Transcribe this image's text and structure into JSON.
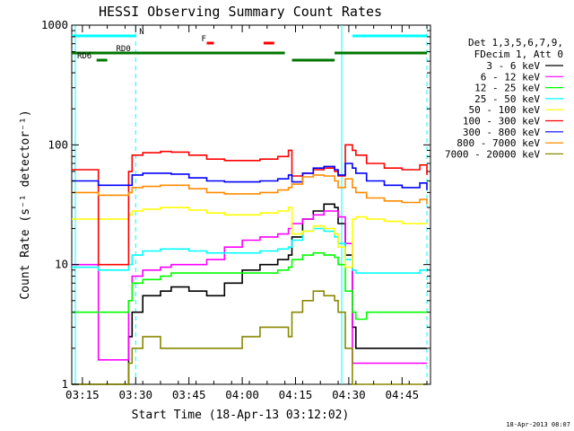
{
  "chart_data": {
    "type": "line",
    "title": "HESSI Observing Summary Count Rates",
    "xlabel": "Start Time (18-Apr-13 03:12:02)",
    "ylabel": "Count Rate (s⁻¹ detector⁻¹)",
    "x_tick_labels": [
      "03:15",
      "03:30",
      "03:45",
      "04:00",
      "04:15",
      "04:30",
      "04:45"
    ],
    "x_ticks_min": [
      0,
      15,
      30,
      45,
      60,
      75,
      90
    ],
    "xlim_min": [
      -3,
      98
    ],
    "y_tick_labels": [
      "1",
      "10",
      "100",
      "1000"
    ],
    "ylim": [
      1,
      1000
    ],
    "yscale": "log",
    "timestamp": "18-Apr-2013 08:07",
    "legend": {
      "position": "right",
      "header": [
        "Det 1,3,5,6,7,9,",
        "FDecim 1, Att 0"
      ],
      "entries": [
        {
          "label": "3 - 6 keV",
          "color": "#000000"
        },
        {
          "label": "6 - 12 keV",
          "color": "#ff00ff"
        },
        {
          "label": "12 - 25 keV",
          "color": "#00ff00"
        },
        {
          "label": "25 - 50 keV",
          "color": "#00ffff"
        },
        {
          "label": "50 - 100 keV",
          "color": "#ffff00"
        },
        {
          "label": "100 - 300 keV",
          "color": "#ff0000"
        },
        {
          "label": "300 - 800 keV",
          "color": "#0000ff"
        },
        {
          "label": "800 - 7000 keV",
          "color": "#ff8c00"
        },
        {
          "label": "7000 - 20000 keV",
          "color": "#888800"
        }
      ]
    },
    "flags": [
      {
        "label": "N",
        "color": "#00ffff",
        "segments": [
          [
            -3,
            15
          ],
          [
            76,
            97
          ]
        ]
      },
      {
        "label": "F",
        "color": "#ff0000",
        "segments": [
          [
            35,
            37
          ],
          [
            51,
            54
          ]
        ]
      },
      {
        "label": "RD0",
        "color": "#007700",
        "segments": [
          [
            -3,
            57
          ],
          [
            71,
            97
          ]
        ]
      },
      {
        "label": "RD6",
        "color": "#007700",
        "segments": [
          [
            4,
            7
          ],
          [
            59,
            71
          ]
        ]
      }
    ],
    "vlines": [
      {
        "x": -2,
        "color": "#00ffff",
        "style": "solid"
      },
      {
        "x": 15,
        "color": "#00ffff",
        "style": "dashed"
      },
      {
        "x": 73,
        "color": "#00ffff",
        "style": "solid"
      },
      {
        "x": 97,
        "color": "#00ffff",
        "style": "dashed"
      }
    ],
    "series": [
      {
        "name": "3 - 6 keV",
        "color": "#000000",
        "x": [
          -3,
          4,
          4.5,
          10,
          13,
          14,
          17,
          22,
          25,
          30,
          35,
          40,
          45,
          50,
          55,
          58,
          59,
          62,
          65,
          68,
          71,
          72,
          74,
          76,
          77,
          80,
          85,
          90,
          95,
          97
        ],
        "y": [
          1,
          1,
          1,
          1,
          2.5,
          4,
          5.5,
          6,
          6.5,
          6,
          5.5,
          7,
          9,
          10,
          11,
          12,
          17,
          24,
          28,
          32,
          30,
          22,
          12,
          3,
          2,
          2,
          2,
          2,
          2,
          2
        ]
      },
      {
        "name": "6 - 12 keV",
        "color": "#ff00ff",
        "x": [
          -3,
          4,
          4.5,
          10,
          13,
          14,
          17,
          22,
          25,
          30,
          35,
          40,
          45,
          50,
          55,
          58,
          59,
          62,
          65,
          68,
          71,
          72,
          74,
          76,
          77,
          80,
          85,
          90,
          95,
          97
        ],
        "y": [
          10,
          10,
          1.6,
          1.6,
          5,
          8,
          9,
          9.5,
          10,
          10,
          11,
          14,
          16,
          17,
          18,
          20,
          22,
          24,
          26,
          28,
          28,
          25,
          15,
          1.5,
          1.5,
          1.5,
          1.5,
          1.5,
          1.5,
          1.5
        ]
      },
      {
        "name": "12 - 25 keV",
        "color": "#00ff00",
        "x": [
          -3,
          4,
          4.5,
          10,
          13,
          14,
          17,
          22,
          25,
          30,
          35,
          40,
          45,
          50,
          55,
          58,
          59,
          62,
          65,
          68,
          71,
          72,
          74,
          76,
          77,
          80,
          85,
          90,
          95,
          97
        ],
        "y": [
          4,
          4,
          4,
          4,
          5,
          7,
          7.5,
          8,
          8.5,
          8.5,
          8.5,
          8.5,
          8.5,
          8.5,
          9,
          9.5,
          11,
          12,
          12.5,
          12,
          11.5,
          10,
          6,
          4,
          3.5,
          4,
          4,
          4,
          4,
          4
        ]
      },
      {
        "name": "25 - 50 keV",
        "color": "#00ffff",
        "x": [
          -3,
          4,
          4.5,
          10,
          13,
          14,
          17,
          22,
          25,
          30,
          35,
          40,
          45,
          50,
          55,
          58,
          59,
          62,
          65,
          68,
          71,
          72,
          74,
          76,
          77,
          80,
          85,
          90,
          95,
          97
        ],
        "y": [
          9.5,
          9.5,
          9,
          9,
          10,
          12,
          13,
          13.5,
          13.5,
          13,
          12.5,
          12.5,
          12.5,
          13,
          13.5,
          14,
          16,
          19,
          20,
          19,
          17,
          15,
          11,
          9,
          8.5,
          8.5,
          8.5,
          8.5,
          9,
          9
        ]
      },
      {
        "name": "50 - 100 keV",
        "color": "#ffff00",
        "x": [
          -3,
          4,
          4.5,
          10,
          13,
          14,
          17,
          22,
          25,
          30,
          35,
          40,
          45,
          50,
          55,
          58,
          59,
          62,
          65,
          68,
          71,
          72,
          74,
          76,
          77,
          80,
          85,
          90,
          95,
          97
        ],
        "y": [
          24,
          24,
          24,
          24,
          26,
          28,
          29,
          30,
          30,
          28.5,
          27,
          26,
          26,
          27,
          28,
          30,
          18,
          19,
          21,
          20,
          18,
          14,
          9.5,
          24,
          25,
          24,
          23,
          22,
          22,
          22
        ]
      },
      {
        "name": "100 - 300 keV",
        "color": "#ff0000",
        "x": [
          -3,
          4,
          4.5,
          10,
          13,
          14,
          17,
          22,
          25,
          30,
          35,
          40,
          45,
          50,
          55,
          58,
          59,
          62,
          65,
          68,
          71,
          72,
          74,
          76,
          77,
          80,
          85,
          90,
          95,
          97
        ],
        "y": [
          62,
          62,
          10,
          10,
          60,
          82,
          86,
          88,
          87,
          82,
          76,
          74,
          74,
          76,
          80,
          90,
          55,
          58,
          62,
          64,
          60,
          55,
          100,
          90,
          82,
          70,
          64,
          62,
          68,
          56
        ]
      },
      {
        "name": "300 - 800 keV",
        "color": "#0000ff",
        "x": [
          -3,
          4,
          4.5,
          10,
          13,
          14,
          17,
          22,
          25,
          30,
          35,
          40,
          45,
          50,
          55,
          58,
          59,
          62,
          65,
          68,
          71,
          72,
          74,
          76,
          77,
          80,
          85,
          90,
          95,
          97
        ],
        "y": [
          50,
          50,
          46,
          46,
          46,
          56,
          58,
          58,
          57,
          53,
          50,
          49,
          49,
          50,
          52,
          56,
          49,
          58,
          64,
          66,
          62,
          56,
          70,
          64,
          58,
          50,
          46,
          44,
          48,
          42
        ]
      },
      {
        "name": "800 - 7000 keV",
        "color": "#ff8c00",
        "x": [
          -3,
          4,
          4.5,
          10,
          13,
          14,
          17,
          22,
          25,
          30,
          35,
          40,
          45,
          50,
          55,
          58,
          59,
          62,
          65,
          68,
          71,
          72,
          74,
          76,
          77,
          80,
          85,
          90,
          95,
          97
        ],
        "y": [
          40,
          40,
          38,
          38,
          40,
          44,
          45,
          46,
          46,
          43,
          40,
          39,
          39,
          40,
          42,
          44,
          47,
          54,
          56,
          55,
          50,
          44,
          52,
          44,
          40,
          36,
          34,
          33,
          35,
          32
        ]
      },
      {
        "name": "7000 - 20000 keV",
        "color": "#888800",
        "x": [
          -3,
          4,
          4.5,
          10,
          13,
          14,
          17,
          22,
          25,
          30,
          35,
          40,
          45,
          50,
          55,
          58,
          59,
          62,
          65,
          68,
          71,
          72,
          74,
          76,
          77,
          80,
          85,
          90,
          95,
          97
        ],
        "y": [
          1,
          1,
          1,
          1,
          1.5,
          2,
          2.5,
          2,
          2,
          2,
          2,
          2,
          2.5,
          3,
          3,
          2.5,
          4,
          5,
          6,
          5.5,
          5,
          4,
          2,
          1,
          1,
          1,
          1,
          1,
          1,
          1
        ]
      }
    ]
  }
}
